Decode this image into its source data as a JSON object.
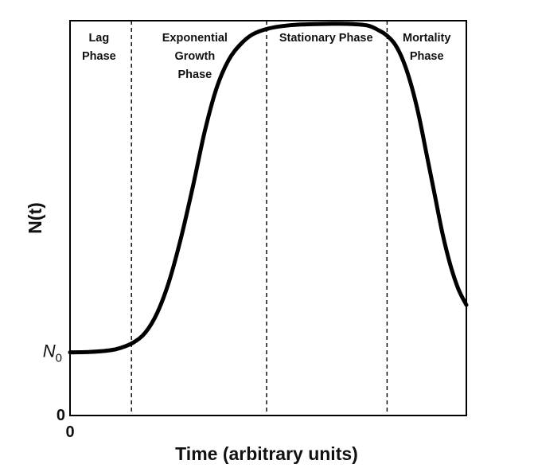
{
  "chart_data": {
    "type": "line",
    "title": "",
    "xlabel": "Time (arbitrary units)",
    "ylabel": "N(t)",
    "xlim": [
      0,
      100
    ],
    "ylim": [
      0,
      100
    ],
    "grid": false,
    "x_tick_labels": [
      "0"
    ],
    "y_tick_labels": [
      {
        "value": 0,
        "label": "0"
      },
      {
        "value": 16,
        "label": "N",
        "subscript": "0"
      }
    ],
    "phase_boundaries": [
      15.5,
      49.6,
      80.0
    ],
    "phases": [
      {
        "lines": [
          "Lag",
          "Phase"
        ],
        "x_center": 7.3
      },
      {
        "lines": [
          "Exponential",
          "Growth",
          "Phase"
        ],
        "x_center": 31.5
      },
      {
        "lines": [
          "Stationary Phase"
        ],
        "x_center": 64.6
      },
      {
        "lines": [
          "Mortality",
          "Phase"
        ],
        "x_center": 90.0
      }
    ],
    "series": [
      {
        "x": [
          0,
          5,
          10,
          13,
          16,
          19,
          22,
          25,
          28,
          31,
          34,
          37,
          40,
          43,
          46,
          50,
          55,
          60,
          65,
          70,
          75,
          78,
          80,
          82,
          84,
          86,
          88,
          90,
          92,
          94,
          96,
          98,
          100
        ],
        "y": [
          16,
          16.1,
          16.5,
          17.2,
          18.5,
          21,
          26,
          34,
          45,
          58,
          72,
          83,
          90,
          94,
          96.5,
          98,
          98.8,
          99.1,
          99.2,
          99.2,
          98.8,
          97.5,
          96.2,
          94,
          90,
          84,
          76,
          66,
          56,
          46,
          38,
          32,
          28
        ]
      }
    ]
  }
}
